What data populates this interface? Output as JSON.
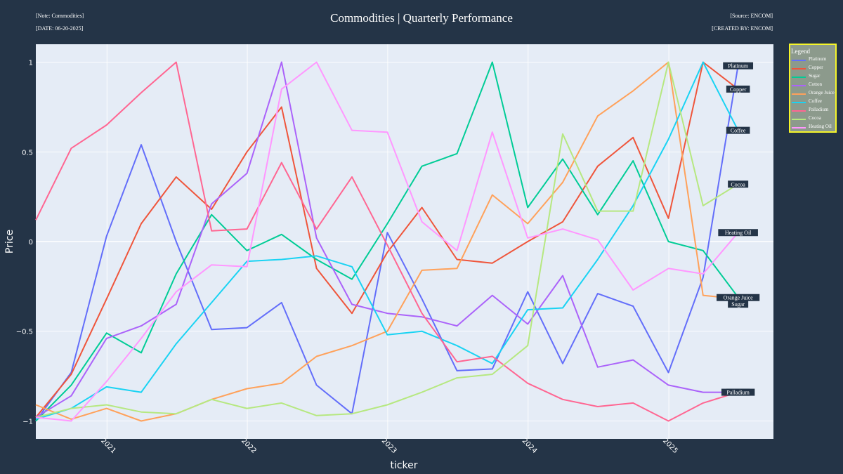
{
  "header": {
    "note": "[Note: Commodities]",
    "date": "[DATE: 06-20-2025]",
    "title": "Commodities | Quarterly Performance",
    "source": "[Source: ENCOM]",
    "credit": "[CREATED BY: ENCOM]"
  },
  "legend": {
    "title": "Legend",
    "position": "top-right, outside plot"
  },
  "colors": {
    "page_bg": "#243447",
    "plot_bg": "#e5ecf6",
    "legend_bg": "#8c9a8c",
    "legend_border": "#f5f529",
    "label_box_bg": "#243447"
  },
  "chart_data": {
    "type": "line",
    "title": "Commodities | Quarterly Performance",
    "xlabel": "ticker",
    "ylabel": "Price",
    "x": [
      "2020-06-30",
      "2020-09-30",
      "2020-12-31",
      "2021-03-31",
      "2021-06-30",
      "2021-09-30",
      "2021-12-31",
      "2022-03-31",
      "2022-06-30",
      "2022-09-30",
      "2022-12-31",
      "2023-03-31",
      "2023-06-30",
      "2023-09-30",
      "2023-12-31",
      "2024-03-31",
      "2024-06-30",
      "2024-09-30",
      "2024-12-31",
      "2025-03-31",
      "2025-06-30"
    ],
    "xlim": [
      "2020-06-30",
      "2025-09-30"
    ],
    "x_ticks": [
      "2021",
      "2022",
      "2023",
      "2024",
      "2025"
    ],
    "ylim": [
      -1.1,
      1.1
    ],
    "y_ticks": [
      1,
      0.5,
      0,
      -0.5,
      -1
    ],
    "y_tick_labels": [
      "1",
      "0.5",
      "0",
      "−0.5",
      "−1"
    ],
    "grid": true,
    "series": [
      {
        "name": "Platinum",
        "color": "#636efa",
        "values": [
          -1.0,
          -0.73,
          0.03,
          0.54,
          0.0,
          -0.49,
          -0.48,
          -0.34,
          -0.8,
          -0.96,
          0.05,
          -0.32,
          -0.72,
          -0.71,
          -0.28,
          -0.68,
          -0.29,
          -0.36,
          -0.73,
          -0.2,
          0.98
        ]
      },
      {
        "name": "Copper",
        "color": "#ef553b",
        "values": [
          -0.98,
          -0.74,
          -0.32,
          0.1,
          0.36,
          0.18,
          0.5,
          0.75,
          -0.15,
          -0.4,
          -0.06,
          0.19,
          -0.1,
          -0.12,
          0.0,
          0.11,
          0.42,
          0.58,
          0.13,
          1.0,
          0.85
        ]
      },
      {
        "name": "Sugar",
        "color": "#00cc96",
        "values": [
          -1.0,
          -0.8,
          -0.51,
          -0.62,
          -0.18,
          0.15,
          -0.05,
          0.04,
          -0.1,
          -0.21,
          0.1,
          0.42,
          0.49,
          1.0,
          0.19,
          0.46,
          0.15,
          0.45,
          0.0,
          -0.05,
          -0.31
        ]
      },
      {
        "name": "Cotton",
        "color": "#ab63fa",
        "values": [
          -0.98,
          -0.86,
          -0.54,
          -0.47,
          -0.35,
          0.21,
          0.38,
          1.0,
          0.02,
          -0.35,
          -0.4,
          -0.42,
          -0.47,
          -0.3,
          -0.46,
          -0.19,
          -0.7,
          -0.66,
          -0.8,
          -0.84,
          -0.84
        ]
      },
      {
        "name": "Orange Juice",
        "color": "#ffa15a",
        "values": [
          -0.91,
          -0.99,
          -0.93,
          -1.0,
          -0.96,
          -0.88,
          -0.82,
          -0.79,
          -0.64,
          -0.58,
          -0.5,
          -0.16,
          -0.15,
          0.26,
          0.1,
          0.33,
          0.7,
          0.84,
          1.0,
          -0.3,
          -0.32
        ]
      },
      {
        "name": "Coffee",
        "color": "#19d3f3",
        "values": [
          -0.99,
          -0.93,
          -0.81,
          -0.84,
          -0.57,
          -0.34,
          -0.11,
          -0.1,
          -0.08,
          -0.14,
          -0.52,
          -0.5,
          -0.58,
          -0.68,
          -0.38,
          -0.37,
          -0.1,
          0.2,
          0.57,
          1.0,
          0.62
        ]
      },
      {
        "name": "Palladium",
        "color": "#ff6692",
        "values": [
          0.12,
          0.52,
          0.65,
          0.83,
          1.0,
          0.06,
          0.07,
          0.44,
          0.07,
          0.36,
          -0.02,
          -0.4,
          -0.67,
          -0.64,
          -0.79,
          -0.88,
          -0.92,
          -0.9,
          -1.0,
          -0.9,
          -0.84
        ]
      },
      {
        "name": "Cocoa",
        "color": "#b6e880",
        "values": [
          -0.98,
          -0.93,
          -0.91,
          -0.95,
          -0.96,
          -0.88,
          -0.93,
          -0.9,
          -0.97,
          -0.96,
          -0.91,
          -0.84,
          -0.76,
          -0.74,
          -0.58,
          0.6,
          0.17,
          0.17,
          1.0,
          0.2,
          0.32
        ]
      },
      {
        "name": "Heating Oil",
        "color": "#ff97ff",
        "values": [
          -0.98,
          -1.0,
          -0.78,
          -0.54,
          -0.28,
          -0.13,
          -0.14,
          0.85,
          1.0,
          0.62,
          0.61,
          0.11,
          -0.05,
          0.61,
          0.02,
          0.07,
          0.01,
          -0.27,
          -0.15,
          -0.18,
          0.05
        ]
      }
    ]
  }
}
